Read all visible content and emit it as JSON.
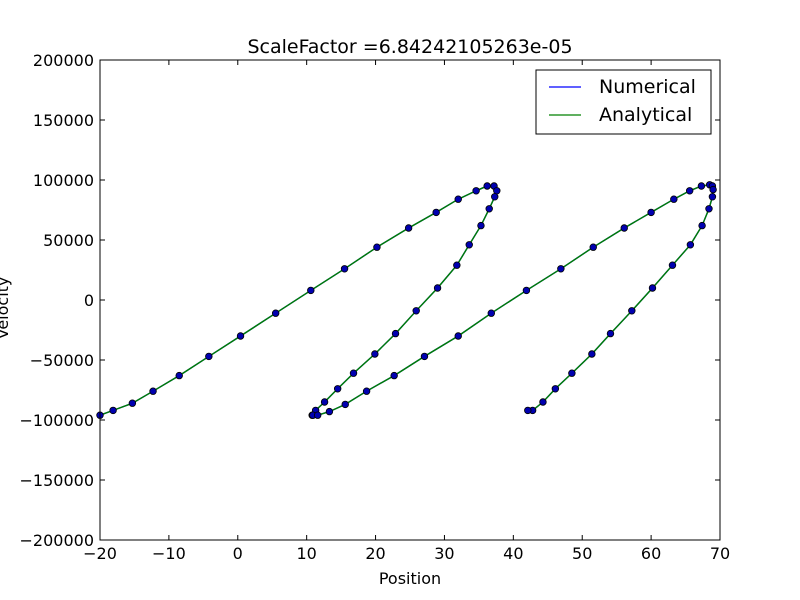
{
  "chart_data": {
    "type": "line",
    "title": "ScaleFactor =6.84242105263e-05",
    "xlabel": "Position",
    "ylabel": "Velocity",
    "xlim": [
      -20,
      70
    ],
    "ylim": [
      -200000,
      200000
    ],
    "xticks": [
      "−20",
      "−10",
      "0",
      "10",
      "20",
      "30",
      "40",
      "50",
      "60",
      "70"
    ],
    "yticks": [
      "−200000",
      "−150000",
      "−100000",
      "−50000",
      "0",
      "50000",
      "100000",
      "150000",
      "200000"
    ],
    "legend_position": "top-right",
    "grid": false,
    "series": [
      {
        "name": "Numerical",
        "style": "line",
        "color": "#0000ff",
        "x": [
          -20,
          -18.1,
          -15.3,
          -12.3,
          -8.5,
          -4.2,
          0.4,
          5.5,
          10.6,
          15.5,
          20.2,
          24.8,
          28.8,
          32,
          34.6,
          36.2,
          37.2,
          37.6,
          37.3,
          36.5,
          35.3,
          33.6,
          31.8,
          29,
          25.9,
          22.9,
          19.9,
          16.8,
          14.5,
          12.6,
          11.3,
          10.8,
          10.9,
          11.6,
          13.3,
          15.6,
          18.7,
          22.7,
          27.1,
          32,
          36.8,
          41.9,
          46.9,
          51.6,
          56.1,
          60,
          63.3,
          65.6,
          67.3,
          68.5,
          68.9,
          69,
          68.9,
          68.4,
          67.4,
          65.7,
          63.1,
          60.2,
          57.2,
          54.1,
          51.4,
          48.5,
          46.1,
          44.3,
          42.8,
          42.1
        ],
        "y": [
          -96000,
          -92000,
          -86000,
          -76000,
          -63000,
          -47000,
          -30000,
          -11000,
          8000,
          26000,
          44000,
          60000,
          73000,
          84000,
          91000,
          95000,
          95000,
          91000,
          86000,
          76000,
          62000,
          46000,
          29000,
          10000,
          -9000,
          -28000,
          -45000,
          -61000,
          -74000,
          -85000,
          -92000,
          -96000,
          -96000,
          -96000,
          -93000,
          -87000,
          -76000,
          -63000,
          -47000,
          -30000,
          -11000,
          8000,
          26000,
          44000,
          60000,
          73000,
          84000,
          91000,
          95000,
          96000,
          95000,
          92000,
          86000,
          76000,
          62000,
          46000,
          29000,
          10000,
          -9000,
          -28000,
          -45000,
          -61000,
          -74000,
          -85000,
          -92000,
          -92000
        ]
      },
      {
        "name": "Analytical",
        "style": "line",
        "color": "#008000",
        "x": [
          -20,
          -18.1,
          -15.3,
          -12.3,
          -8.5,
          -4.2,
          0.4,
          5.5,
          10.6,
          15.5,
          20.2,
          24.8,
          28.8,
          32,
          34.6,
          36.2,
          37.2,
          37.6,
          37.3,
          36.5,
          35.3,
          33.6,
          31.8,
          29,
          25.9,
          22.9,
          19.9,
          16.8,
          14.5,
          12.6,
          11.3,
          10.8,
          10.9,
          11.6,
          13.3,
          15.6,
          18.7,
          22.7,
          27.1,
          32,
          36.8,
          41.9,
          46.9,
          51.6,
          56.1,
          60,
          63.3,
          65.6,
          67.3,
          68.5,
          68.9,
          69,
          68.9,
          68.4,
          67.4,
          65.7,
          63.1,
          60.2,
          57.2,
          54.1,
          51.4,
          48.5,
          46.1,
          44.3,
          42.8,
          42.1
        ],
        "y": [
          -96000,
          -92000,
          -86000,
          -76000,
          -63000,
          -47000,
          -30000,
          -11000,
          8000,
          26000,
          44000,
          60000,
          73000,
          84000,
          91000,
          95000,
          95000,
          91000,
          86000,
          76000,
          62000,
          46000,
          29000,
          10000,
          -9000,
          -28000,
          -45000,
          -61000,
          -74000,
          -85000,
          -92000,
          -96000,
          -96000,
          -96000,
          -93000,
          -87000,
          -76000,
          -63000,
          -47000,
          -30000,
          -11000,
          8000,
          26000,
          44000,
          60000,
          73000,
          84000,
          91000,
          95000,
          96000,
          95000,
          92000,
          86000,
          76000,
          62000,
          46000,
          29000,
          10000,
          -9000,
          -28000,
          -45000,
          -61000,
          -74000,
          -85000,
          -92000,
          -92000
        ]
      }
    ],
    "markers": {
      "color": "#0000b0",
      "x": [
        -20,
        -18.1,
        -15.3,
        -12.3,
        -8.5,
        -4.2,
        0.4,
        5.5,
        10.6,
        15.5,
        20.2,
        24.8,
        28.8,
        32,
        34.6,
        36.2,
        37.2,
        37.6,
        37.3,
        36.5,
        35.3,
        33.6,
        31.8,
        29,
        25.9,
        22.9,
        19.9,
        16.8,
        14.5,
        12.6,
        11.3,
        10.8,
        10.9,
        11.6,
        13.3,
        15.6,
        18.7,
        22.7,
        27.1,
        32,
        36.8,
        41.9,
        46.9,
        51.6,
        56.1,
        60,
        63.3,
        65.6,
        67.3,
        68.5,
        68.9,
        69,
        68.9,
        68.4,
        67.4,
        65.7,
        63.1,
        60.2,
        57.2,
        54.1,
        51.4,
        48.5,
        46.1,
        44.3,
        42.8,
        42.1
      ],
      "y": [
        -96000,
        -92000,
        -86000,
        -76000,
        -63000,
        -47000,
        -30000,
        -11000,
        8000,
        26000,
        44000,
        60000,
        73000,
        84000,
        91000,
        95000,
        95000,
        91000,
        86000,
        76000,
        62000,
        46000,
        29000,
        10000,
        -9000,
        -28000,
        -45000,
        -61000,
        -74000,
        -85000,
        -92000,
        -96000,
        -96000,
        -96000,
        -93000,
        -87000,
        -76000,
        -63000,
        -47000,
        -30000,
        -11000,
        8000,
        26000,
        44000,
        60000,
        73000,
        84000,
        91000,
        95000,
        96000,
        95000,
        92000,
        86000,
        76000,
        62000,
        46000,
        29000,
        10000,
        -9000,
        -28000,
        -45000,
        -61000,
        -74000,
        -85000,
        -92000,
        -92000
      ]
    }
  }
}
